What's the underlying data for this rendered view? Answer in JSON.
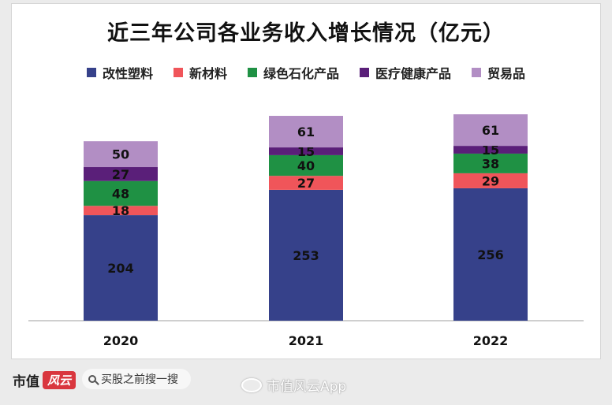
{
  "chart_data": {
    "type": "bar",
    "stacked": true,
    "title": "近三年公司各业务收入增长情况（亿元）",
    "categories": [
      "2020",
      "2021",
      "2022"
    ],
    "series": [
      {
        "name": "改性塑料",
        "color": "#36418a",
        "values": [
          204,
          253,
          256
        ]
      },
      {
        "name": "新材料",
        "color": "#f0555a",
        "values": [
          18,
          27,
          29
        ]
      },
      {
        "name": "绿色石化产品",
        "color": "#1f9144",
        "values": [
          48,
          40,
          38
        ]
      },
      {
        "name": "医疗健康产品",
        "color": "#5a1f79",
        "values": [
          27,
          15,
          15
        ]
      },
      {
        "name": "贸易品",
        "color": "#b28ec4",
        "values": [
          50,
          61,
          61
        ]
      }
    ],
    "legend_position": "top",
    "grid": false
  },
  "footer": {
    "brand_name": "市值",
    "brand_box": "风云",
    "search_placeholder": "买股之前搜一搜",
    "watermark": "市值风云App"
  }
}
